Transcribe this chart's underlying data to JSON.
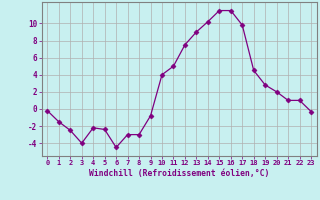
{
  "x": [
    0,
    1,
    2,
    3,
    4,
    5,
    6,
    7,
    8,
    9,
    10,
    11,
    12,
    13,
    14,
    15,
    16,
    17,
    18,
    19,
    20,
    21,
    22,
    23
  ],
  "y": [
    -0.2,
    -1.5,
    -2.5,
    -4.0,
    -2.2,
    -2.4,
    -4.5,
    -3.0,
    -3.0,
    -0.8,
    4.0,
    5.0,
    7.5,
    9.0,
    10.2,
    11.5,
    11.5,
    9.8,
    4.5,
    2.8,
    2.0,
    1.0,
    1.0,
    -0.3
  ],
  "line_color": "#800080",
  "marker": "D",
  "marker_size": 2.5,
  "bg_color": "#c8f0f0",
  "grid_color": "#b0b0b0",
  "xlabel": "Windchill (Refroidissement éolien,°C)",
  "xlabel_color": "#800080",
  "ylabel_ticks": [
    -4,
    -2,
    0,
    2,
    4,
    6,
    8,
    10
  ],
  "xlim": [
    -0.5,
    23.5
  ],
  "ylim": [
    -5.5,
    12.5
  ],
  "tick_label_color": "#800080",
  "axis_color": "#800080",
  "border_color": "#808080"
}
